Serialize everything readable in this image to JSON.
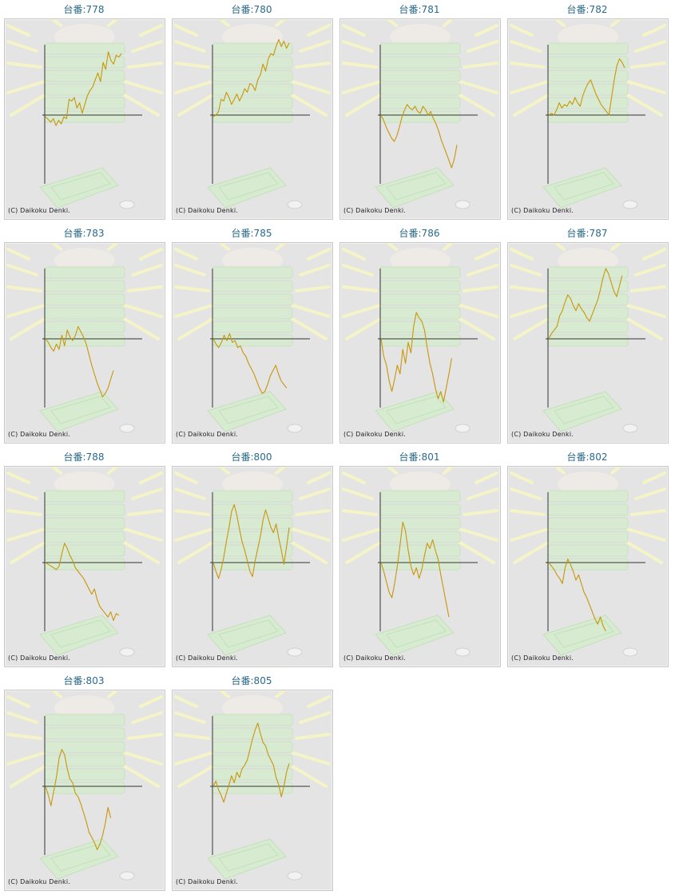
{
  "chart_data": [
    {
      "type": "line",
      "title": "台番:778",
      "copyright": "(C) Daikoku Denki.",
      "y": [
        -2,
        -5,
        -8,
        -4,
        -12,
        -6,
        -10,
        -2,
        -4,
        18,
        16,
        20,
        8,
        14,
        2,
        12,
        22,
        28,
        32,
        40,
        48,
        38,
        60,
        52,
        72,
        62,
        58,
        68,
        66,
        70
      ],
      "ylim": [
        -70,
        80
      ]
    },
    {
      "type": "line",
      "title": "台番:780",
      "copyright": "(C) Daikoku Denki.",
      "y": [
        -2,
        0,
        4,
        18,
        16,
        26,
        20,
        12,
        18,
        24,
        16,
        22,
        30,
        26,
        36,
        34,
        28,
        40,
        46,
        58,
        50,
        64,
        70,
        68,
        78,
        86,
        78,
        84,
        76,
        82
      ],
      "ylim": [
        -70,
        80
      ]
    },
    {
      "type": "line",
      "title": "台番:781",
      "copyright": "(C) Daikoku Denki.",
      "y": [
        0,
        -6,
        -14,
        -20,
        -26,
        -30,
        -24,
        -14,
        -2,
        6,
        12,
        8,
        6,
        10,
        4,
        2,
        10,
        6,
        0,
        4,
        -4,
        -10,
        -18,
        -28,
        -36,
        -44,
        -52,
        -60,
        -50,
        -34
      ],
      "ylim": [
        -70,
        80
      ]
    },
    {
      "type": "line",
      "title": "台番:782",
      "copyright": "(C) Daikoku Denki.",
      "y": [
        0,
        2,
        0,
        6,
        14,
        8,
        12,
        10,
        16,
        12,
        20,
        14,
        10,
        22,
        30,
        36,
        40,
        32,
        24,
        18,
        12,
        8,
        4,
        0,
        20,
        40,
        56,
        64,
        60,
        54
      ],
      "ylim": [
        -70,
        80
      ]
    },
    {
      "type": "line",
      "title": "台番:783",
      "copyright": "(C) Daikoku Denki.",
      "y": [
        0,
        -4,
        -10,
        -14,
        -6,
        -12,
        4,
        -8,
        10,
        2,
        -2,
        4,
        14,
        8,
        2,
        -6,
        -18,
        -30,
        -40,
        -50,
        -58,
        -66,
        -62,
        -56,
        -46,
        -36
      ],
      "ylim": [
        -70,
        80
      ]
    },
    {
      "type": "line",
      "title": "台番:785",
      "copyright": "(C) Daikoku Denki.",
      "y": [
        0,
        -6,
        -10,
        -4,
        4,
        -2,
        6,
        -4,
        -2,
        -10,
        -8,
        -16,
        -20,
        -28,
        -34,
        -40,
        -48,
        -56,
        -62,
        -60,
        -52,
        -42,
        -36,
        -30,
        -40,
        -48,
        -52,
        -56
      ],
      "ylim": [
        -70,
        80
      ]
    },
    {
      "type": "line",
      "title": "台番:786",
      "copyright": "(C) Daikoku Denki.",
      "y": [
        0,
        -20,
        -30,
        -48,
        -60,
        -46,
        -30,
        -40,
        -12,
        -28,
        -4,
        -16,
        14,
        30,
        24,
        20,
        10,
        -10,
        -28,
        -40,
        -56,
        -68,
        -60,
        -72,
        -56,
        -40,
        -22
      ],
      "ylim": [
        -70,
        80
      ]
    },
    {
      "type": "line",
      "title": "台番:787",
      "copyright": "(C) Daikoku Denki.",
      "y": [
        0,
        6,
        10,
        14,
        26,
        32,
        42,
        50,
        46,
        38,
        32,
        40,
        34,
        30,
        24,
        20,
        28,
        36,
        44,
        56,
        70,
        80,
        74,
        64,
        54,
        48,
        60,
        72
      ],
      "ylim": [
        -70,
        80
      ]
    },
    {
      "type": "line",
      "title": "台番:788",
      "copyright": "(C) Daikoku Denki.",
      "y": [
        0,
        -2,
        -4,
        -6,
        -8,
        -4,
        10,
        22,
        16,
        8,
        2,
        -6,
        -10,
        -14,
        -18,
        -24,
        -30,
        -36,
        -30,
        -42,
        -50,
        -54,
        -58,
        -62,
        -56,
        -66,
        -58,
        -60
      ],
      "ylim": [
        -70,
        80
      ]
    },
    {
      "type": "line",
      "title": "台番:800",
      "copyright": "(C) Daikoku Denki.",
      "y": [
        0,
        -10,
        -18,
        -8,
        6,
        24,
        40,
        58,
        66,
        54,
        38,
        24,
        14,
        2,
        -10,
        -16,
        2,
        16,
        30,
        48,
        60,
        50,
        40,
        34,
        44,
        28,
        14,
        -2,
        18,
        40
      ],
      "ylim": [
        -70,
        80
      ]
    },
    {
      "type": "line",
      "title": "台番:801",
      "copyright": "(C) Daikoku Denki.",
      "y": [
        0,
        -10,
        -22,
        -34,
        -40,
        -24,
        -4,
        20,
        46,
        36,
        14,
        -4,
        -14,
        -6,
        -18,
        -8,
        8,
        22,
        16,
        26,
        14,
        4,
        -14,
        -30,
        -46,
        -62
      ],
      "ylim": [
        -70,
        80
      ]
    },
    {
      "type": "line",
      "title": "台番:802",
      "copyright": "(C) Daikoku Denki.",
      "y": [
        0,
        -4,
        -8,
        -14,
        -18,
        -24,
        -6,
        4,
        -2,
        -10,
        -20,
        -14,
        -24,
        -34,
        -40,
        -48,
        -56,
        -64,
        -70,
        -62,
        -72,
        -78
      ],
      "ylim": [
        -70,
        80
      ]
    },
    {
      "type": "line",
      "title": "台番:803",
      "copyright": "(C) Daikoku Denki.",
      "y": [
        0,
        -10,
        -22,
        -6,
        10,
        32,
        42,
        36,
        20,
        8,
        4,
        -8,
        -12,
        -20,
        -30,
        -40,
        -52,
        -58,
        -64,
        -72,
        -66,
        -56,
        -42,
        -24,
        -36
      ],
      "ylim": [
        -70,
        80
      ]
    },
    {
      "type": "line",
      "title": "台番:805",
      "copyright": "(C) Daikoku Denki.",
      "y": [
        0,
        6,
        -4,
        -10,
        -18,
        -8,
        2,
        12,
        4,
        16,
        10,
        20,
        24,
        30,
        42,
        54,
        64,
        72,
        60,
        50,
        46,
        36,
        30,
        24,
        10,
        2,
        -12,
        0,
        16,
        26
      ],
      "ylim": [
        -70,
        80
      ]
    }
  ]
}
